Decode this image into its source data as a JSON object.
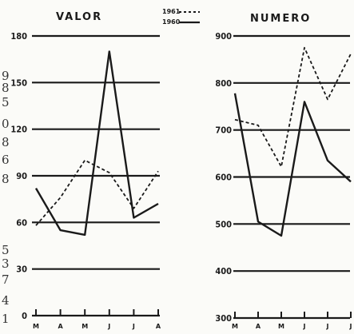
{
  "chart_data": [
    {
      "type": "line",
      "title": "VALOR",
      "categories": [
        "M",
        "A",
        "M",
        "J",
        "J",
        "A"
      ],
      "yticks": [
        0,
        30,
        60,
        90,
        120,
        150,
        180
      ],
      "ylim": [
        0,
        180
      ],
      "series": [
        {
          "name": "1961",
          "style": "dashed",
          "values": [
            58,
            76,
            100,
            92,
            69,
            93
          ]
        },
        {
          "name": "1960",
          "style": "solid",
          "values": [
            82,
            55,
            52,
            170,
            63,
            72
          ]
        }
      ]
    },
    {
      "type": "line",
      "title": "NUMERO",
      "categories": [
        "M",
        "A",
        "M",
        "J",
        "J",
        "J"
      ],
      "yticks": [
        300,
        400,
        500,
        600,
        700,
        800,
        900
      ],
      "ylim": [
        300,
        900
      ],
      "series": [
        {
          "name": "1961",
          "style": "dashed",
          "values": [
            722,
            710,
            622,
            875,
            765,
            862
          ]
        },
        {
          "name": "1960",
          "style": "solid",
          "values": [
            778,
            505,
            475,
            760,
            635,
            590
          ]
        }
      ]
    }
  ],
  "legend": {
    "items": [
      {
        "label": "1961",
        "style": "dashed"
      },
      {
        "label": "1960",
        "style": "solid"
      }
    ]
  },
  "left_edge_glyphs": [
    "9",
    "8",
    "5",
    "0",
    "8",
    "6",
    "8",
    "5",
    "3",
    "7",
    "4",
    "1"
  ],
  "colors": {
    "ink": "#1a1a1a",
    "paper": "#fbfbf8"
  }
}
